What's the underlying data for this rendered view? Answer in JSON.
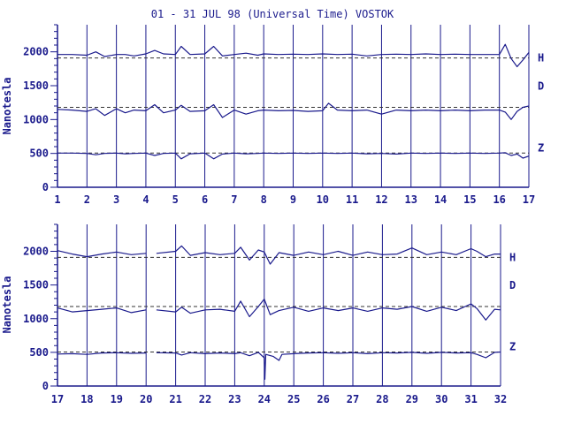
{
  "chart_data": {
    "title": "01 - 31 JUL 98 (Universal Time) VOSTOK",
    "ylabel": "Nanotesla",
    "color": "#1a1a8c",
    "yticks": [
      0,
      500,
      1000,
      1500,
      2000
    ],
    "ylim": [
      0,
      2400
    ],
    "panels": [
      {
        "type": "line",
        "xlim": [
          1,
          17
        ],
        "xticks": [
          "1",
          "2",
          "3",
          "4",
          "5",
          "6",
          "7",
          "8",
          "9",
          "10",
          "11",
          "12",
          "13",
          "14",
          "15",
          "16",
          "17"
        ],
        "series": [
          {
            "name": "H",
            "baseline": 1910,
            "x": [
              1,
              1.5,
              2,
              2.3,
              2.6,
              3,
              3.3,
              3.6,
              4,
              4.3,
              4.6,
              5,
              5.2,
              5.5,
              6,
              6.3,
              6.6,
              7,
              7.4,
              7.8,
              8,
              8.5,
              9,
              9.5,
              10,
              10.5,
              11,
              11.5,
              12,
              12.5,
              13,
              13.5,
              14,
              14.5,
              15,
              15.5,
              16,
              16.2,
              16.4,
              16.6,
              16.8,
              17
            ],
            "values": [
              1960,
              1960,
              1950,
              2000,
              1930,
              1960,
              1960,
              1940,
              1970,
              2020,
              1970,
              1960,
              2080,
              1960,
              1970,
              2080,
              1940,
              1960,
              1980,
              1950,
              1970,
              1960,
              1965,
              1960,
              1970,
              1960,
              1965,
              1940,
              1960,
              1965,
              1960,
              1970,
              1960,
              1965,
              1960,
              1960,
              1960,
              2110,
              1900,
              1780,
              1880,
              1990
            ]
          },
          {
            "name": "D",
            "baseline": 1180,
            "x": [
              1,
              1.5,
              2,
              2.3,
              2.6,
              3,
              3.3,
              3.6,
              4,
              4.3,
              4.6,
              5,
              5.2,
              5.5,
              6,
              6.3,
              6.6,
              7,
              7.4,
              7.8,
              8,
              8.5,
              9,
              9.5,
              10,
              10.2,
              10.5,
              11,
              11.5,
              12,
              12.5,
              13,
              13.5,
              14,
              14.5,
              15,
              15.5,
              16,
              16.2,
              16.4,
              16.6,
              16.8,
              17
            ],
            "values": [
              1150,
              1140,
              1120,
              1160,
              1060,
              1160,
              1100,
              1140,
              1130,
              1220,
              1100,
              1140,
              1210,
              1120,
              1130,
              1220,
              1030,
              1140,
              1080,
              1130,
              1140,
              1130,
              1135,
              1120,
              1130,
              1240,
              1140,
              1130,
              1140,
              1080,
              1140,
              1130,
              1140,
              1130,
              1140,
              1130,
              1140,
              1140,
              1110,
              1000,
              1120,
              1180,
              1200
            ]
          },
          {
            "name": "Z",
            "baseline": 505,
            "x": [
              1,
              1.5,
              2,
              2.3,
              2.6,
              3,
              3.3,
              3.6,
              4,
              4.3,
              4.6,
              5,
              5.2,
              5.5,
              6,
              6.3,
              6.6,
              7,
              7.4,
              7.8,
              8,
              8.5,
              9,
              9.5,
              10,
              10.5,
              11,
              11.5,
              12,
              12.5,
              13,
              13.5,
              14,
              14.5,
              15,
              15.5,
              16,
              16.2,
              16.4,
              16.6,
              16.8,
              17
            ],
            "values": [
              505,
              505,
              500,
              480,
              500,
              505,
              495,
              500,
              505,
              470,
              500,
              505,
              420,
              495,
              505,
              420,
              490,
              505,
              495,
              500,
              505,
              500,
              505,
              500,
              505,
              500,
              505,
              495,
              500,
              490,
              505,
              500,
              505,
              500,
              505,
              500,
              505,
              510,
              470,
              490,
              430,
              460
            ]
          }
        ]
      },
      {
        "type": "line",
        "xlim": [
          17,
          32
        ],
        "xticks": [
          "17",
          "18",
          "19",
          "20",
          "21",
          "22",
          "23",
          "24",
          "25",
          "26",
          "27",
          "28",
          "29",
          "30",
          "31",
          "32"
        ],
        "series": [
          {
            "name": "H",
            "baseline": 1910,
            "x": [
              17,
              17.5,
              18,
              18.5,
              19,
              19.5,
              20,
              20.25,
              20.35,
              21,
              21.2,
              21.5,
              22,
              22.5,
              23,
              23.2,
              23.5,
              23.8,
              24,
              24.2,
              24.5,
              25,
              25.5,
              26,
              26.5,
              27,
              27.5,
              28,
              28.5,
              29,
              29.5,
              30,
              30.5,
              31,
              31.2,
              31.5,
              31.8,
              32
            ],
            "values": [
              2010,
              1960,
              1920,
              1960,
              1990,
              1950,
              1970,
              null,
              1970,
              2000,
              2080,
              1940,
              1980,
              1950,
              1970,
              2060,
              1870,
              2020,
              1990,
              1810,
              1980,
              1940,
              1990,
              1950,
              2000,
              1940,
              1990,
              1950,
              1960,
              2050,
              1950,
              1990,
              1950,
              2040,
              2000,
              1920,
              1960,
              1960
            ]
          },
          {
            "name": "D",
            "baseline": 1180,
            "x": [
              17,
              17.5,
              18,
              18.5,
              19,
              19.5,
              20,
              20.25,
              20.35,
              21,
              21.2,
              21.5,
              22,
              22.5,
              23,
              23.2,
              23.5,
              23.8,
              24,
              24.2,
              24.5,
              25,
              25.5,
              26,
              26.5,
              27,
              27.5,
              28,
              28.5,
              29,
              29.5,
              30,
              30.5,
              31,
              31.2,
              31.5,
              31.8,
              32
            ],
            "values": [
              1160,
              1100,
              1120,
              1140,
              1160,
              1090,
              1130,
              null,
              1130,
              1100,
              1170,
              1080,
              1130,
              1140,
              1110,
              1260,
              1030,
              1180,
              1290,
              1060,
              1120,
              1170,
              1110,
              1160,
              1120,
              1160,
              1110,
              1160,
              1140,
              1180,
              1110,
              1170,
              1120,
              1220,
              1150,
              980,
              1140,
              1130
            ]
          },
          {
            "name": "Z",
            "baseline": 505,
            "x": [
              17,
              17.5,
              18,
              18.5,
              19,
              19.5,
              20,
              20.25,
              20.35,
              21,
              21.2,
              21.5,
              22,
              22.5,
              23,
              23.2,
              23.5,
              23.8,
              24,
              24.02,
              24.05,
              24.3,
              24.5,
              24.6,
              25,
              25.5,
              26,
              26.5,
              27,
              27.5,
              28,
              28.5,
              29,
              29.5,
              30,
              30.5,
              31,
              31.2,
              31.5,
              31.8,
              32
            ],
            "values": [
              475,
              480,
              470,
              490,
              495,
              485,
              490,
              null,
              495,
              490,
              460,
              495,
              480,
              490,
              480,
              495,
              450,
              500,
              420,
              100,
              470,
              440,
              380,
              470,
              480,
              490,
              495,
              485,
              495,
              480,
              495,
              490,
              500,
              485,
              500,
              490,
              495,
              470,
              420,
              500,
              505
            ]
          }
        ]
      }
    ]
  }
}
